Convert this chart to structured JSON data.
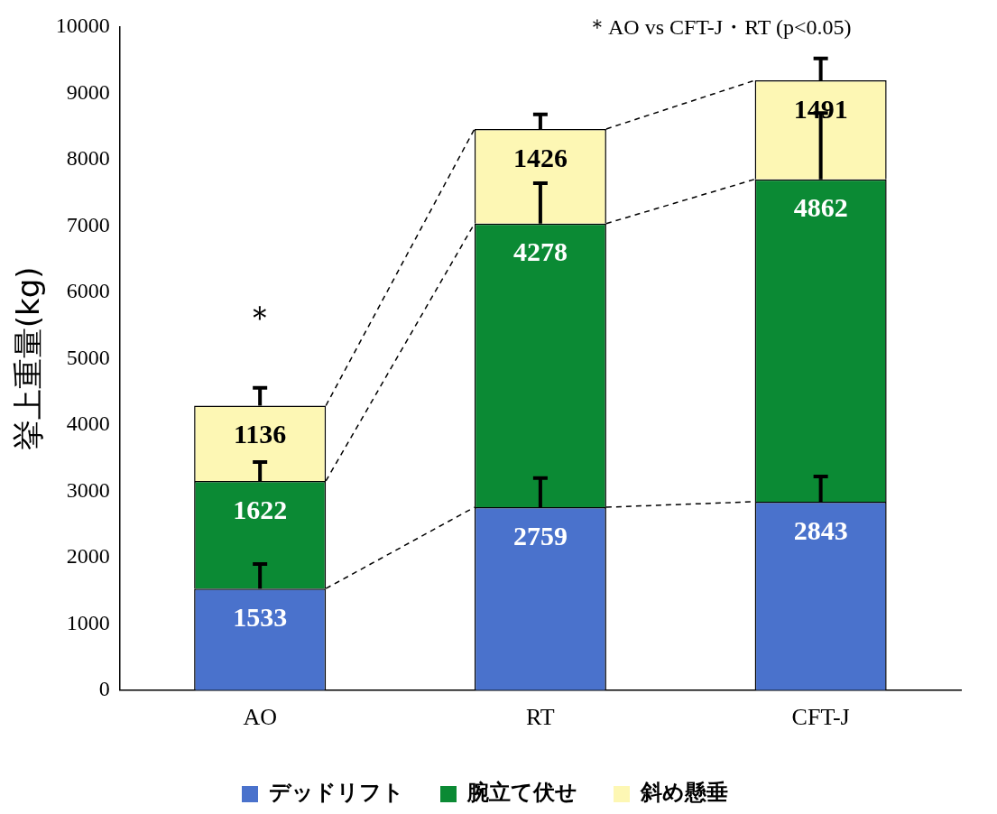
{
  "chart_data": {
    "type": "bar",
    "stacked": true,
    "ylabel": "挙上重量(kg)",
    "categories": [
      "AO",
      "RT",
      "CFT-J"
    ],
    "series": [
      {
        "name": "デッドリフト",
        "color": "#4a72cc",
        "values": [
          1533,
          2759,
          2843
        ],
        "errors": [
          [
            1533,
            1903
          ],
          [
            2759,
            3199
          ],
          [
            2843,
            3223
          ]
        ]
      },
      {
        "name": "腕立て伏せ",
        "color": "#0b8a34",
        "values": [
          1622,
          4278,
          4862
        ],
        "errors": [
          [
            3155,
            3440
          ],
          [
            7037,
            7647
          ],
          [
            7705,
            8705
          ]
        ]
      },
      {
        "name": "斜め懸垂",
        "color": "#fdf7b4",
        "values": [
          1136,
          1426,
          1491
        ],
        "errors": [
          [
            4291,
            4561
          ],
          [
            8463,
            8683
          ],
          [
            9196,
            9526
          ]
        ]
      }
    ],
    "ylim": [
      0,
      10000
    ],
    "yticks": [
      0,
      1000,
      2000,
      3000,
      4000,
      5000,
      6000,
      7000,
      8000,
      9000,
      10000
    ],
    "data_labels": true,
    "grid": false,
    "legend": "bottom",
    "annotations": [
      "＊AO vs CFT-J・RT (p<0.05)",
      "＊"
    ]
  }
}
